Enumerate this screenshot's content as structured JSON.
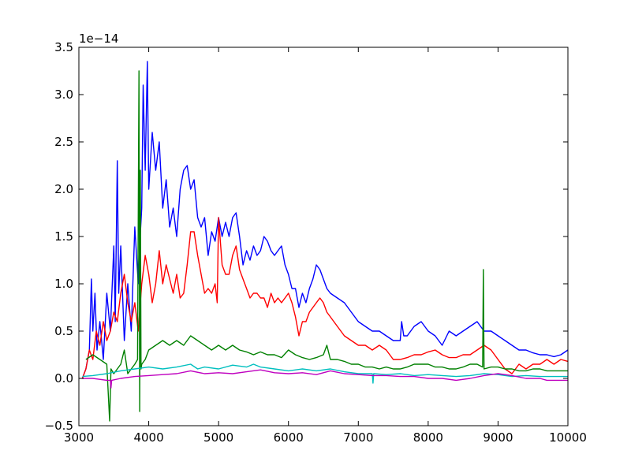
{
  "chart_data": {
    "type": "line",
    "title": "",
    "xlabel": "",
    "ylabel": "",
    "y_offset_text": "1e−14",
    "xlim": [
      3000,
      10000
    ],
    "ylim": [
      -0.5,
      3.5
    ],
    "x_ticks": [
      3000,
      4000,
      5000,
      6000,
      7000,
      8000,
      9000,
      10000
    ],
    "x_tick_labels": [
      "3000",
      "4000",
      "5000",
      "6000",
      "7000",
      "8000",
      "9000",
      "10000"
    ],
    "y_ticks": [
      -0.5,
      0.0,
      0.5,
      1.0,
      1.5,
      2.0,
      2.5,
      3.0,
      3.5
    ],
    "y_tick_labels": [
      "−0.5",
      "0.0",
      "0.5",
      "1.0",
      "1.5",
      "2.0",
      "2.5",
      "3.0",
      "3.5"
    ],
    "grid": false,
    "legend": "none",
    "series": [
      {
        "color": "#0000ff",
        "x": [
          3050,
          3100,
          3150,
          3180,
          3200,
          3230,
          3260,
          3300,
          3350,
          3400,
          3450,
          3500,
          3520,
          3550,
          3570,
          3600,
          3650,
          3700,
          3750,
          3800,
          3850,
          3870,
          3900,
          3920,
          3950,
          3980,
          4000,
          4050,
          4100,
          4150,
          4200,
          4250,
          4300,
          4350,
          4400,
          4450,
          4500,
          4550,
          4600,
          4650,
          4700,
          4750,
          4800,
          4850,
          4900,
          4950,
          5000,
          5050,
          5100,
          5150,
          5200,
          5250,
          5300,
          5350,
          5400,
          5450,
          5500,
          5550,
          5600,
          5650,
          5700,
          5750,
          5800,
          5850,
          5900,
          5950,
          6000,
          6050,
          6100,
          6150,
          6200,
          6250,
          6300,
          6350,
          6400,
          6450,
          6500,
          6550,
          6600,
          6700,
          6800,
          6900,
          7000,
          7100,
          7200,
          7300,
          7400,
          7500,
          7600,
          7620,
          7650,
          7700,
          7800,
          7900,
          8000,
          8100,
          8200,
          8300,
          8400,
          8500,
          8600,
          8700,
          8800,
          8900,
          9000,
          9100,
          9200,
          9300,
          9400,
          9500,
          9600,
          9700,
          9800,
          9900,
          10000
        ],
        "y": [
          0.0,
          0.1,
          0.3,
          1.05,
          0.5,
          0.9,
          0.3,
          0.6,
          0.2,
          0.9,
          0.5,
          1.4,
          0.6,
          2.3,
          0.9,
          1.4,
          0.4,
          1.0,
          0.5,
          1.6,
          1.0,
          1.4,
          1.8,
          3.1,
          2.2,
          3.35,
          2.0,
          2.6,
          2.2,
          2.5,
          1.8,
          2.1,
          1.6,
          1.8,
          1.5,
          2.0,
          2.2,
          2.25,
          2.0,
          2.1,
          1.7,
          1.6,
          1.7,
          1.3,
          1.55,
          1.45,
          1.7,
          1.5,
          1.65,
          1.5,
          1.7,
          1.75,
          1.5,
          1.2,
          1.35,
          1.25,
          1.4,
          1.3,
          1.35,
          1.5,
          1.45,
          1.35,
          1.3,
          1.35,
          1.4,
          1.2,
          1.1,
          0.95,
          0.95,
          0.75,
          0.9,
          0.8,
          0.95,
          1.05,
          1.2,
          1.15,
          1.05,
          0.95,
          0.9,
          0.85,
          0.8,
          0.7,
          0.6,
          0.55,
          0.5,
          0.5,
          0.45,
          0.4,
          0.4,
          0.6,
          0.45,
          0.45,
          0.55,
          0.6,
          0.5,
          0.45,
          0.35,
          0.5,
          0.45,
          0.5,
          0.55,
          0.6,
          0.5,
          0.5,
          0.45,
          0.4,
          0.35,
          0.3,
          0.3,
          0.27,
          0.25,
          0.25,
          0.23,
          0.25,
          0.3
        ]
      },
      {
        "color": "#ff0000",
        "x": [
          3050,
          3100,
          3150,
          3200,
          3250,
          3300,
          3350,
          3400,
          3450,
          3500,
          3550,
          3600,
          3650,
          3700,
          3750,
          3800,
          3850,
          3900,
          3950,
          4000,
          4050,
          4100,
          4150,
          4200,
          4250,
          4300,
          4350,
          4400,
          4450,
          4500,
          4550,
          4600,
          4650,
          4700,
          4750,
          4800,
          4850,
          4900,
          4950,
          4980,
          5000,
          5050,
          5100,
          5150,
          5200,
          5250,
          5300,
          5350,
          5400,
          5450,
          5500,
          5550,
          5600,
          5650,
          5700,
          5750,
          5800,
          5850,
          5900,
          5950,
          6000,
          6050,
          6100,
          6150,
          6200,
          6250,
          6300,
          6350,
          6400,
          6450,
          6500,
          6550,
          6600,
          6700,
          6800,
          6900,
          7000,
          7100,
          7200,
          7300,
          7400,
          7500,
          7600,
          7700,
          7800,
          7900,
          8000,
          8100,
          8200,
          8300,
          8400,
          8500,
          8600,
          8700,
          8800,
          8900,
          9000,
          9100,
          9200,
          9300,
          9400,
          9500,
          9600,
          9700,
          9800,
          9900,
          10000
        ],
        "y": [
          0.0,
          0.1,
          0.3,
          0.2,
          0.5,
          0.35,
          0.6,
          0.4,
          0.5,
          0.7,
          0.6,
          0.9,
          1.1,
          0.8,
          0.6,
          0.8,
          0.5,
          1.0,
          1.3,
          1.1,
          0.8,
          1.0,
          1.35,
          1.0,
          1.2,
          1.05,
          0.9,
          1.1,
          0.85,
          0.9,
          1.2,
          1.55,
          1.55,
          1.3,
          1.1,
          0.9,
          0.95,
          0.9,
          1.0,
          0.8,
          1.7,
          1.2,
          1.1,
          1.1,
          1.3,
          1.4,
          1.15,
          1.05,
          0.95,
          0.85,
          0.9,
          0.9,
          0.85,
          0.85,
          0.75,
          0.9,
          0.8,
          0.85,
          0.8,
          0.85,
          0.9,
          0.8,
          0.65,
          0.45,
          0.6,
          0.6,
          0.7,
          0.75,
          0.8,
          0.85,
          0.8,
          0.7,
          0.65,
          0.55,
          0.45,
          0.4,
          0.35,
          0.35,
          0.3,
          0.35,
          0.3,
          0.2,
          0.2,
          0.22,
          0.25,
          0.25,
          0.28,
          0.3,
          0.25,
          0.22,
          0.22,
          0.25,
          0.25,
          0.3,
          0.35,
          0.3,
          0.2,
          0.1,
          0.05,
          0.15,
          0.1,
          0.15,
          0.15,
          0.2,
          0.15,
          0.2,
          0.18
        ]
      },
      {
        "color": "#008000",
        "x": [
          3100,
          3200,
          3300,
          3400,
          3440,
          3460,
          3500,
          3550,
          3600,
          3650,
          3700,
          3750,
          3800,
          3840,
          3860,
          3870,
          3880,
          3890,
          3900,
          3950,
          4000,
          4100,
          4200,
          4300,
          4400,
          4500,
          4600,
          4700,
          4800,
          4900,
          5000,
          5100,
          5200,
          5300,
          5400,
          5500,
          5600,
          5700,
          5800,
          5900,
          6000,
          6100,
          6200,
          6300,
          6400,
          6500,
          6550,
          6600,
          6700,
          6800,
          6900,
          7000,
          7100,
          7200,
          7300,
          7400,
          7500,
          7600,
          7700,
          7800,
          7900,
          8000,
          8100,
          8200,
          8300,
          8400,
          8500,
          8600,
          8700,
          8780,
          8790,
          8800,
          8900,
          9000,
          9100,
          9200,
          9300,
          9400,
          9500,
          9600,
          9700,
          9800,
          9900,
          10000
        ],
        "y": [
          0.2,
          0.25,
          0.2,
          0.15,
          -0.45,
          0.1,
          0.05,
          0.1,
          0.15,
          0.3,
          0.05,
          0.1,
          0.15,
          0.2,
          3.25,
          -0.35,
          2.2,
          0.1,
          0.15,
          0.2,
          0.3,
          0.35,
          0.4,
          0.35,
          0.4,
          0.35,
          0.45,
          0.4,
          0.35,
          0.3,
          0.35,
          0.3,
          0.35,
          0.3,
          0.28,
          0.25,
          0.28,
          0.25,
          0.25,
          0.22,
          0.3,
          0.25,
          0.22,
          0.2,
          0.22,
          0.25,
          0.35,
          0.2,
          0.2,
          0.18,
          0.15,
          0.15,
          0.12,
          0.12,
          0.1,
          0.12,
          0.1,
          0.1,
          0.12,
          0.15,
          0.15,
          0.15,
          0.12,
          0.12,
          0.1,
          0.1,
          0.12,
          0.15,
          0.15,
          0.12,
          1.15,
          0.1,
          0.12,
          0.12,
          0.1,
          0.1,
          0.08,
          0.08,
          0.1,
          0.1,
          0.08,
          0.08,
          0.08,
          0.08
        ]
      },
      {
        "color": "#00bfbf",
        "x": [
          3050,
          3200,
          3400,
          3600,
          3800,
          4000,
          4200,
          4400,
          4600,
          4700,
          4800,
          5000,
          5200,
          5400,
          5500,
          5600,
          5800,
          6000,
          6200,
          6400,
          6600,
          6800,
          7000,
          7200,
          7210,
          7220,
          7400,
          7600,
          7800,
          8000,
          8200,
          8400,
          8600,
          8800,
          9000,
          9200,
          9400,
          9600,
          9800,
          10000
        ],
        "y": [
          0.02,
          0.03,
          0.05,
          0.08,
          0.1,
          0.12,
          0.1,
          0.12,
          0.15,
          0.1,
          0.12,
          0.1,
          0.14,
          0.12,
          0.15,
          0.12,
          0.1,
          0.08,
          0.1,
          0.08,
          0.1,
          0.07,
          0.05,
          0.05,
          -0.05,
          0.05,
          0.04,
          0.05,
          0.03,
          0.04,
          0.03,
          0.02,
          0.03,
          0.05,
          0.04,
          0.02,
          0.03,
          0.02,
          0.02,
          0.02
        ]
      },
      {
        "color": "#bf00bf",
        "x": [
          3050,
          3200,
          3400,
          3450,
          3460,
          3470,
          3600,
          3800,
          4000,
          4200,
          4400,
          4600,
          4800,
          5000,
          5200,
          5400,
          5600,
          5800,
          6000,
          6200,
          6400,
          6600,
          6800,
          7000,
          7200,
          7400,
          7600,
          7800,
          8000,
          8200,
          8400,
          8600,
          8800,
          9000,
          9200,
          9400,
          9600,
          9700,
          9800,
          10000
        ],
        "y": [
          0.0,
          0.0,
          -0.02,
          -0.02,
          -0.1,
          -0.02,
          0.0,
          0.02,
          0.03,
          0.04,
          0.05,
          0.08,
          0.05,
          0.06,
          0.05,
          0.07,
          0.09,
          0.06,
          0.05,
          0.06,
          0.04,
          0.08,
          0.05,
          0.04,
          0.03,
          0.03,
          0.02,
          0.02,
          0.0,
          0.0,
          -0.02,
          0.0,
          0.03,
          0.05,
          0.03,
          0.0,
          0.0,
          -0.02,
          -0.02,
          -0.02
        ]
      }
    ]
  }
}
